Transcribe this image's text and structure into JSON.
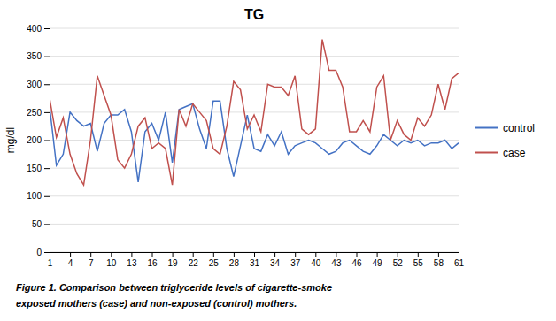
{
  "chart_data": {
    "type": "line",
    "title": "TG",
    "y_label": "mg/dl",
    "x": [
      1,
      2,
      3,
      4,
      5,
      6,
      7,
      8,
      9,
      10,
      11,
      12,
      13,
      14,
      15,
      16,
      17,
      18,
      19,
      20,
      21,
      22,
      23,
      24,
      25,
      26,
      27,
      28,
      29,
      30,
      31,
      32,
      33,
      34,
      35,
      36,
      37,
      38,
      39,
      40,
      41,
      42,
      43,
      44,
      45,
      46,
      47,
      48,
      49,
      50,
      51,
      52,
      53,
      54,
      55,
      56,
      57,
      58,
      59,
      60,
      61
    ],
    "xlim": [
      1,
      61
    ],
    "xticks": [
      1,
      4,
      7,
      10,
      13,
      16,
      19,
      22,
      25,
      28,
      31,
      34,
      37,
      40,
      43,
      46,
      49,
      52,
      55,
      58,
      61
    ],
    "ylim": [
      0,
      400
    ],
    "yticks": [
      0,
      50,
      100,
      150,
      200,
      250,
      300,
      350,
      400
    ],
    "grid": "y",
    "legend": "right",
    "series": [
      {
        "name": "control",
        "color": "#4472c4",
        "values": [
          260,
          155,
          175,
          250,
          235,
          225,
          230,
          180,
          230,
          245,
          245,
          255,
          215,
          125,
          215,
          230,
          200,
          250,
          160,
          255,
          260,
          265,
          220,
          185,
          270,
          270,
          185,
          135,
          190,
          245,
          185,
          180,
          210,
          190,
          215,
          175,
          190,
          195,
          200,
          195,
          185,
          175,
          180,
          195,
          200,
          190,
          180,
          175,
          190,
          210,
          200,
          190,
          200,
          195,
          200,
          190,
          195,
          195,
          200,
          185,
          195
        ]
      },
      {
        "name": "case",
        "color": "#c0504d",
        "values": [
          275,
          205,
          240,
          175,
          140,
          120,
          200,
          315,
          280,
          245,
          165,
          150,
          175,
          225,
          240,
          185,
          195,
          185,
          120,
          255,
          225,
          265,
          250,
          235,
          185,
          175,
          225,
          305,
          290,
          220,
          245,
          215,
          300,
          295,
          295,
          280,
          315,
          220,
          210,
          220,
          380,
          325,
          325,
          295,
          215,
          215,
          235,
          215,
          295,
          315,
          200,
          235,
          210,
          200,
          240,
          225,
          245,
          300,
          255,
          310,
          320
        ]
      }
    ],
    "annotations": [
      "Figure 1. Comparison between triglyceride levels of cigarette-smoke",
      "exposed mothers (case) and non-exposed (control) mothers."
    ]
  }
}
